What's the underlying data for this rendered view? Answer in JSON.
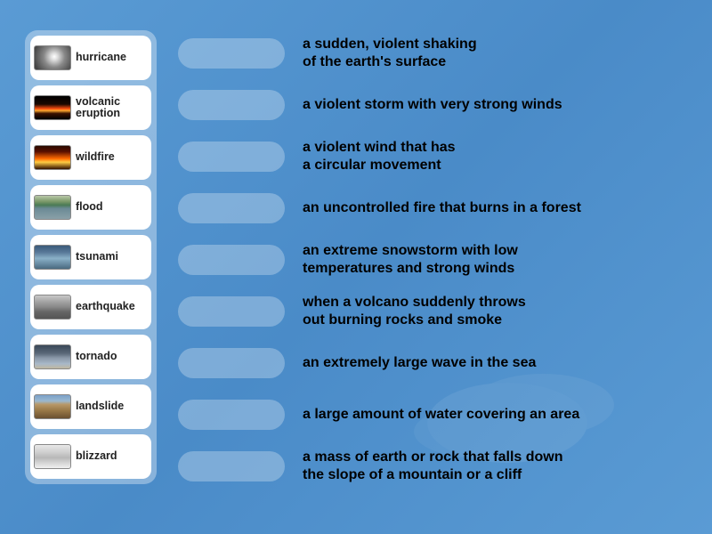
{
  "background_color": "#5a9bd4",
  "panel_bg": "rgba(255,255,255,0.35)",
  "card_bg": "#ffffff",
  "slot_bg": "rgba(255,255,255,0.28)",
  "text_color": "#000000",
  "term_fontsize": 12.5,
  "def_fontsize": 16,
  "terms": [
    {
      "label": "hurricane",
      "thumb_class": "th-hurricane"
    },
    {
      "label": "volcanic\neruption",
      "thumb_class": "th-volcanic"
    },
    {
      "label": "wildfire",
      "thumb_class": "th-wildfire"
    },
    {
      "label": "flood",
      "thumb_class": "th-flood"
    },
    {
      "label": "tsunami",
      "thumb_class": "th-tsunami"
    },
    {
      "label": "earthquake",
      "thumb_class": "th-earthquake"
    },
    {
      "label": "tornado",
      "thumb_class": "th-tornado"
    },
    {
      "label": "landslide",
      "thumb_class": "th-landslide"
    },
    {
      "label": "blizzard",
      "thumb_class": "th-blizzard"
    }
  ],
  "definitions": [
    "a sudden, violent shaking\nof the earth's surface",
    "a violent storm with very strong winds",
    "a violent wind that has\na circular movement",
    "an uncontrolled fire that burns in a forest",
    "an extreme snowstorm with low\ntemperatures and strong winds",
    "when a volcano suddenly throws\nout burning rocks and smoke",
    "an extremely large wave in the sea",
    "a large amount of water covering an area",
    "a mass of earth or rock that falls down\nthe slope of a mountain or a cliff"
  ]
}
